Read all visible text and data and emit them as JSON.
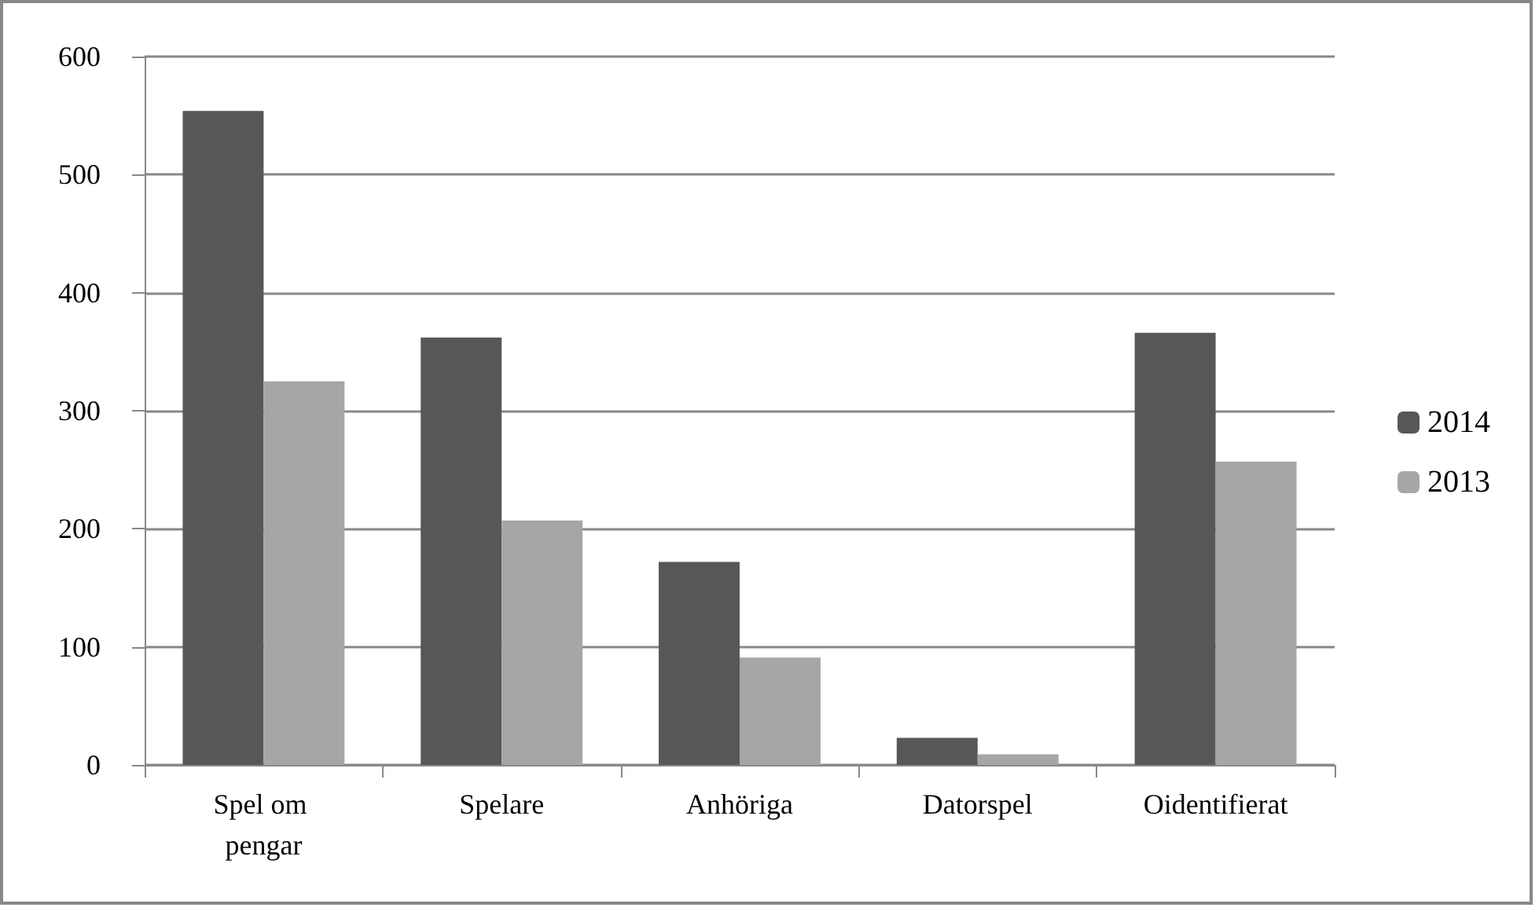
{
  "chart_data": {
    "type": "bar",
    "categories": [
      "Spel om pengar",
      "Spelare",
      "Anhöriga",
      "Datorspel",
      "Oidentifierat"
    ],
    "series": [
      {
        "name": "2014",
        "color": "#575757",
        "values": [
          554,
          362,
          172,
          23,
          366
        ]
      },
      {
        "name": "2013",
        "color": "#a6a6a6",
        "values": [
          325,
          207,
          91,
          9,
          257
        ]
      }
    ],
    "ylim": [
      0,
      600
    ],
    "yticks": [
      0,
      100,
      200,
      300,
      400,
      500,
      600
    ],
    "grid": "y",
    "legend": "right"
  }
}
